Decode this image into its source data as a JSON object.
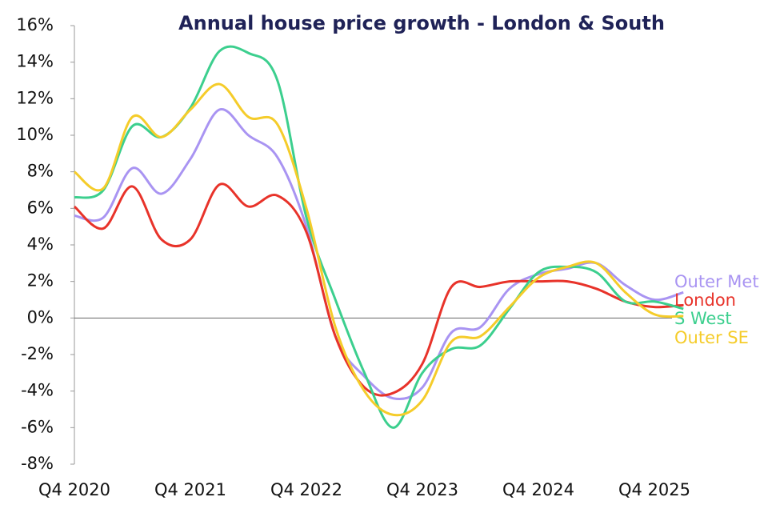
{
  "chart_data": {
    "type": "line",
    "title": "Annual house price growth - London & South",
    "categories": [
      "Q4 2020",
      null,
      null,
      null,
      "Q4 2021",
      null,
      null,
      null,
      "Q4 2022",
      null,
      null,
      null,
      "Q4 2023",
      null,
      null,
      null,
      "Q4 2024",
      null,
      null,
      null,
      "Q4 2025",
      null
    ],
    "series": [
      {
        "name": "Outer Met",
        "color": "#a994f2",
        "values": [
          5.6,
          5.5,
          8.2,
          6.8,
          8.7,
          11.4,
          10.0,
          8.8,
          5.0,
          -1.0,
          -3.2,
          -4.4,
          -3.8,
          -0.8,
          -0.5,
          1.6,
          2.4,
          2.7,
          3.0,
          1.8,
          1.0,
          1.4
        ]
      },
      {
        "name": "London",
        "color": "#e8332a",
        "values": [
          6.1,
          4.9,
          7.2,
          4.3,
          4.3,
          7.3,
          6.1,
          6.7,
          4.7,
          -1.0,
          -3.8,
          -4.1,
          -2.5,
          1.7,
          1.7,
          2.0,
          2.0,
          2.0,
          1.6,
          0.9,
          0.6,
          0.7
        ]
      },
      {
        "name": "S West",
        "color": "#3ccf8e",
        "values": [
          6.6,
          7.0,
          10.5,
          9.9,
          11.5,
          14.6,
          14.5,
          13.0,
          5.5,
          1.0,
          -3.0,
          -6.0,
          -3.0,
          -1.7,
          -1.5,
          0.5,
          2.5,
          2.8,
          2.5,
          0.9,
          0.9,
          0.5
        ]
      },
      {
        "name": "Outer SE",
        "color": "#f5cc2a",
        "values": [
          8.0,
          7.1,
          11.0,
          9.9,
          11.4,
          12.8,
          11.0,
          10.6,
          6.0,
          -0.5,
          -4.0,
          -5.3,
          -4.5,
          -1.3,
          -1.0,
          0.6,
          2.2,
          2.8,
          3.0,
          1.4,
          0.2,
          0.1
        ]
      }
    ],
    "ylim": [
      -8,
      16
    ],
    "yticks": [
      {
        "value": -8,
        "label": "-8%"
      },
      {
        "value": -6,
        "label": "-6%"
      },
      {
        "value": -4,
        "label": "-4%"
      },
      {
        "value": -2,
        "label": "-2%"
      },
      {
        "value": 0,
        "label": "0%"
      },
      {
        "value": 2,
        "label": "2%"
      },
      {
        "value": 4,
        "label": "4%"
      },
      {
        "value": 6,
        "label": "6%"
      },
      {
        "value": 8,
        "label": "8%"
      },
      {
        "value": 10,
        "label": "10%"
      },
      {
        "value": 12,
        "label": "12%"
      },
      {
        "value": 14,
        "label": "14%"
      },
      {
        "value": 16,
        "label": "16%"
      }
    ]
  }
}
